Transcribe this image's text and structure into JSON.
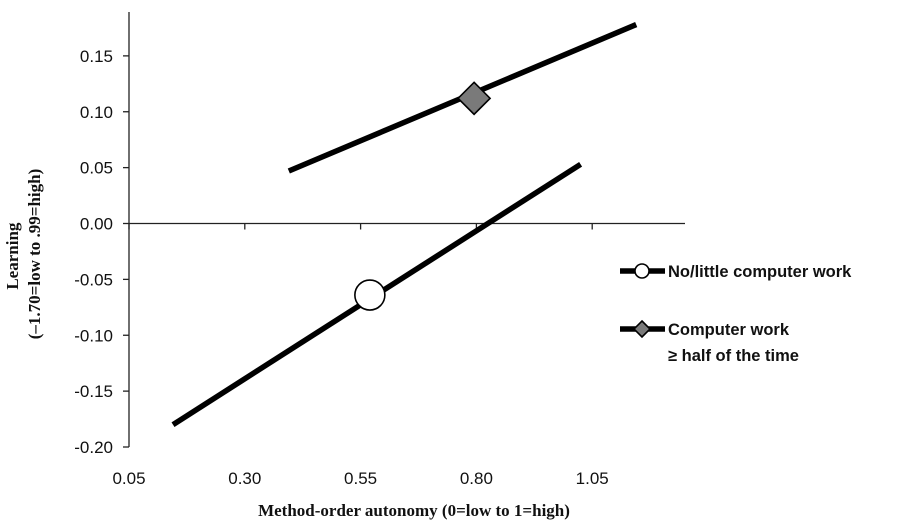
{
  "chart_data": {
    "type": "line",
    "xlabel": "Method-order autonomy (0=low to 1=high)",
    "ylabel_lines": [
      "Learning",
      "(–1.70=low to .99=high)"
    ],
    "xlim": [
      0.05,
      1.3
    ],
    "ylim": [
      -0.2,
      0.2
    ],
    "x_ticks": [
      {
        "v": 0.05,
        "label": "0.05"
      },
      {
        "v": 0.3,
        "label": "0.30"
      },
      {
        "v": 0.55,
        "label": "0.55"
      },
      {
        "v": 0.8,
        "label": "0.80"
      },
      {
        "v": 1.05,
        "label": "1.05"
      }
    ],
    "y_ticks": [
      {
        "v": 0.15,
        "label": "0.15"
      },
      {
        "v": 0.1,
        "label": "0.10"
      },
      {
        "v": 0.05,
        "label": "0.05"
      },
      {
        "v": 0.0,
        "label": "0.00"
      },
      {
        "v": -0.05,
        "label": "-0.05"
      },
      {
        "v": -0.1,
        "label": "-0.10"
      },
      {
        "v": -0.15,
        "label": "-0.15"
      },
      {
        "v": -0.2,
        "label": "-0.20"
      }
    ],
    "series": [
      {
        "name": "No/little computer work",
        "x": [
          0.145,
          1.025
        ],
        "y": [
          -0.18,
          0.053
        ],
        "marker": {
          "shape": "circle",
          "fill": "#ffffff",
          "x": 0.57,
          "y": -0.064
        }
      },
      {
        "name": "Computer work ≥ half of the time",
        "name_lines": [
          "Computer work",
          "≥ half of the time"
        ],
        "x": [
          0.395,
          1.145
        ],
        "y": [
          0.047,
          0.178
        ],
        "marker": {
          "shape": "diamond",
          "fill": "#7a7a7a",
          "x": 0.795,
          "y": 0.112
        }
      }
    ],
    "legend": {
      "position": "right"
    },
    "grid": false
  }
}
